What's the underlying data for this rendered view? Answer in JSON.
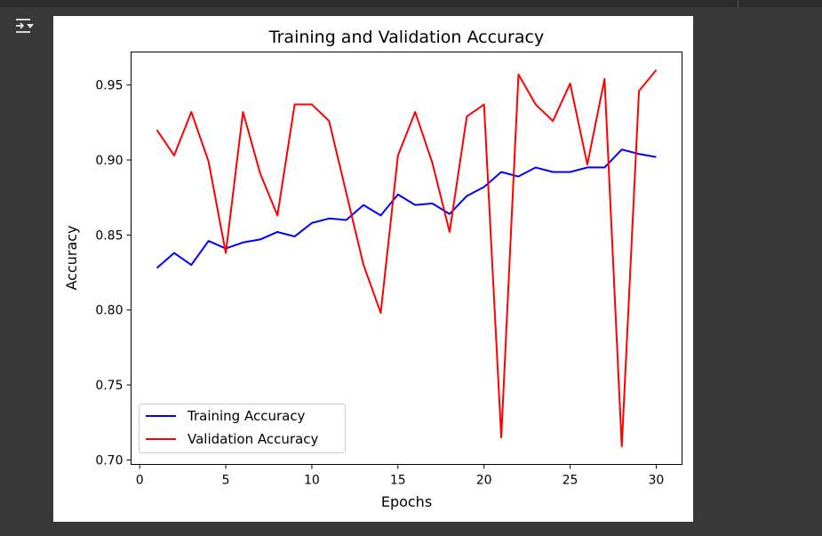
{
  "colors": {
    "training": "#0000ff",
    "validation": "#ff0000"
  },
  "toolbar": {
    "output_toggle_icon": "output-collapse-icon"
  },
  "chart_data": {
    "type": "line",
    "title": "Training and Validation Accuracy",
    "xlabel": "Epochs",
    "ylabel": "Accuracy",
    "xlim": [
      -0.5,
      31.5
    ],
    "ylim": [
      0.697,
      0.972
    ],
    "xticks": [
      0,
      5,
      10,
      15,
      20,
      25,
      30
    ],
    "xtick_labels": [
      "0",
      "5",
      "10",
      "15",
      "20",
      "25",
      "30"
    ],
    "yticks": [
      0.7,
      0.75,
      0.8,
      0.85,
      0.9,
      0.95
    ],
    "ytick_labels": [
      "0.70",
      "0.75",
      "0.80",
      "0.85",
      "0.90",
      "0.95"
    ],
    "grid": false,
    "legend": "lower-left",
    "x": [
      1,
      2,
      3,
      4,
      5,
      6,
      7,
      8,
      9,
      10,
      11,
      12,
      13,
      14,
      15,
      16,
      17,
      18,
      19,
      20,
      21,
      22,
      23,
      24,
      25,
      26,
      27,
      28,
      29,
      30
    ],
    "series": [
      {
        "name": "Training Accuracy",
        "color": "#0000ff",
        "values": [
          0.828,
          0.838,
          0.83,
          0.846,
          0.841,
          0.845,
          0.847,
          0.852,
          0.849,
          0.858,
          0.861,
          0.86,
          0.87,
          0.863,
          0.877,
          0.87,
          0.871,
          0.864,
          0.876,
          0.882,
          0.892,
          0.889,
          0.895,
          0.892,
          0.892,
          0.895,
          0.895,
          0.907,
          0.904,
          0.902
        ]
      },
      {
        "name": "Validation Accuracy",
        "color": "#ff0000",
        "values": [
          0.92,
          0.903,
          0.932,
          0.899,
          0.838,
          0.932,
          0.891,
          0.863,
          0.937,
          0.937,
          0.926,
          0.878,
          0.83,
          0.798,
          0.903,
          0.932,
          0.898,
          0.852,
          0.929,
          0.937,
          0.715,
          0.957,
          0.937,
          0.926,
          0.951,
          0.897,
          0.954,
          0.709,
          0.946,
          0.96
        ]
      }
    ]
  }
}
